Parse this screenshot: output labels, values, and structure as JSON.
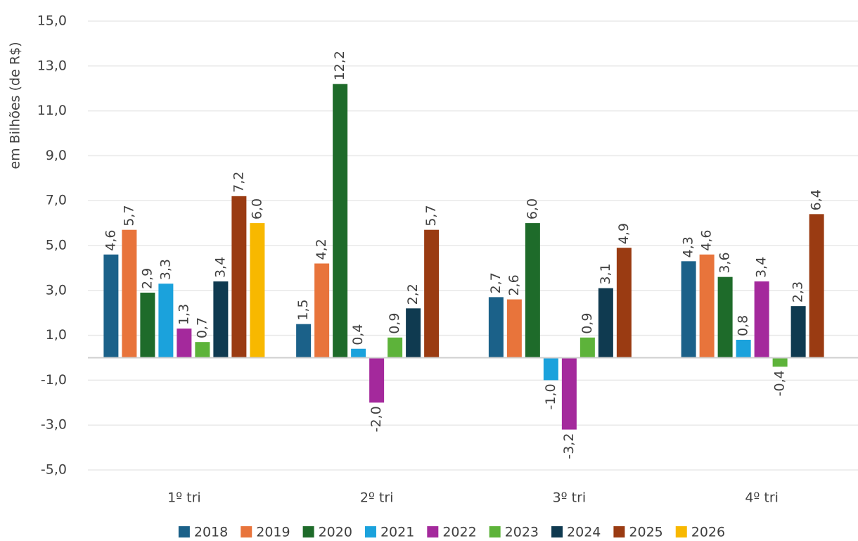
{
  "chart_data": {
    "type": "bar",
    "y_label": "em Bilhões (de R$)",
    "categories": [
      "1º tri",
      "2º tri",
      "3º tri",
      "4º tri"
    ],
    "ylim": [
      -5,
      15
    ],
    "yticks": [
      {
        "value": 15,
        "label": "15,0"
      },
      {
        "value": 13,
        "label": "13,0"
      },
      {
        "value": 11,
        "label": "11,0"
      },
      {
        "value": 9,
        "label": "9,0"
      },
      {
        "value": 7,
        "label": "7,0"
      },
      {
        "value": 5,
        "label": "5,0"
      },
      {
        "value": 3,
        "label": "3,0"
      },
      {
        "value": 1,
        "label": "1,0"
      },
      {
        "value": -1,
        "label": "-1,0"
      },
      {
        "value": -3,
        "label": "-3,0"
      },
      {
        "value": -5,
        "label": "-5,0"
      }
    ],
    "grid": true,
    "series": [
      {
        "name": "2018",
        "color": "#1b6189",
        "values": [
          4.6,
          1.5,
          2.7,
          4.3
        ],
        "value_labels": [
          "4,6",
          "1,5",
          "2,7",
          "4,3"
        ]
      },
      {
        "name": "2019",
        "color": "#e8743b",
        "values": [
          5.7,
          4.2,
          2.6,
          4.6
        ],
        "value_labels": [
          "5,7",
          "4,2",
          "2,6",
          "4,6"
        ]
      },
      {
        "name": "2020",
        "color": "#1e6b2a",
        "values": [
          2.9,
          12.2,
          6.0,
          3.6
        ],
        "value_labels": [
          "2,9",
          "12,2",
          "6,0",
          "3,6"
        ]
      },
      {
        "name": "2021",
        "color": "#1ba2dc",
        "values": [
          3.3,
          0.4,
          -1.0,
          0.8
        ],
        "value_labels": [
          "3,3",
          "0,4",
          "-1,0",
          "0,8"
        ]
      },
      {
        "name": "2022",
        "color": "#a4299c",
        "values": [
          1.3,
          -2.0,
          -3.2,
          3.4
        ],
        "value_labels": [
          "1,3",
          "-2,0",
          "-3,2",
          "3,4"
        ]
      },
      {
        "name": "2023",
        "color": "#5db33a",
        "values": [
          0.7,
          0.9,
          0.9,
          -0.4
        ],
        "value_labels": [
          "0,7",
          "0,9",
          "0,9",
          "-0,4"
        ]
      },
      {
        "name": "2024",
        "color": "#0f3a50",
        "values": [
          3.4,
          2.2,
          3.1,
          2.3
        ],
        "value_labels": [
          "3,4",
          "2,2",
          "3,1",
          "2,3"
        ]
      },
      {
        "name": "2025",
        "color": "#9a3b12",
        "values": [
          7.2,
          5.7,
          4.9,
          6.4
        ],
        "value_labels": [
          "7,2",
          "5,7",
          "4,9",
          "6,4"
        ]
      },
      {
        "name": "2026",
        "color": "#f8b800",
        "values": [
          6.0,
          null,
          null,
          null
        ],
        "value_labels": [
          "6,0",
          null,
          null,
          null
        ]
      }
    ]
  }
}
